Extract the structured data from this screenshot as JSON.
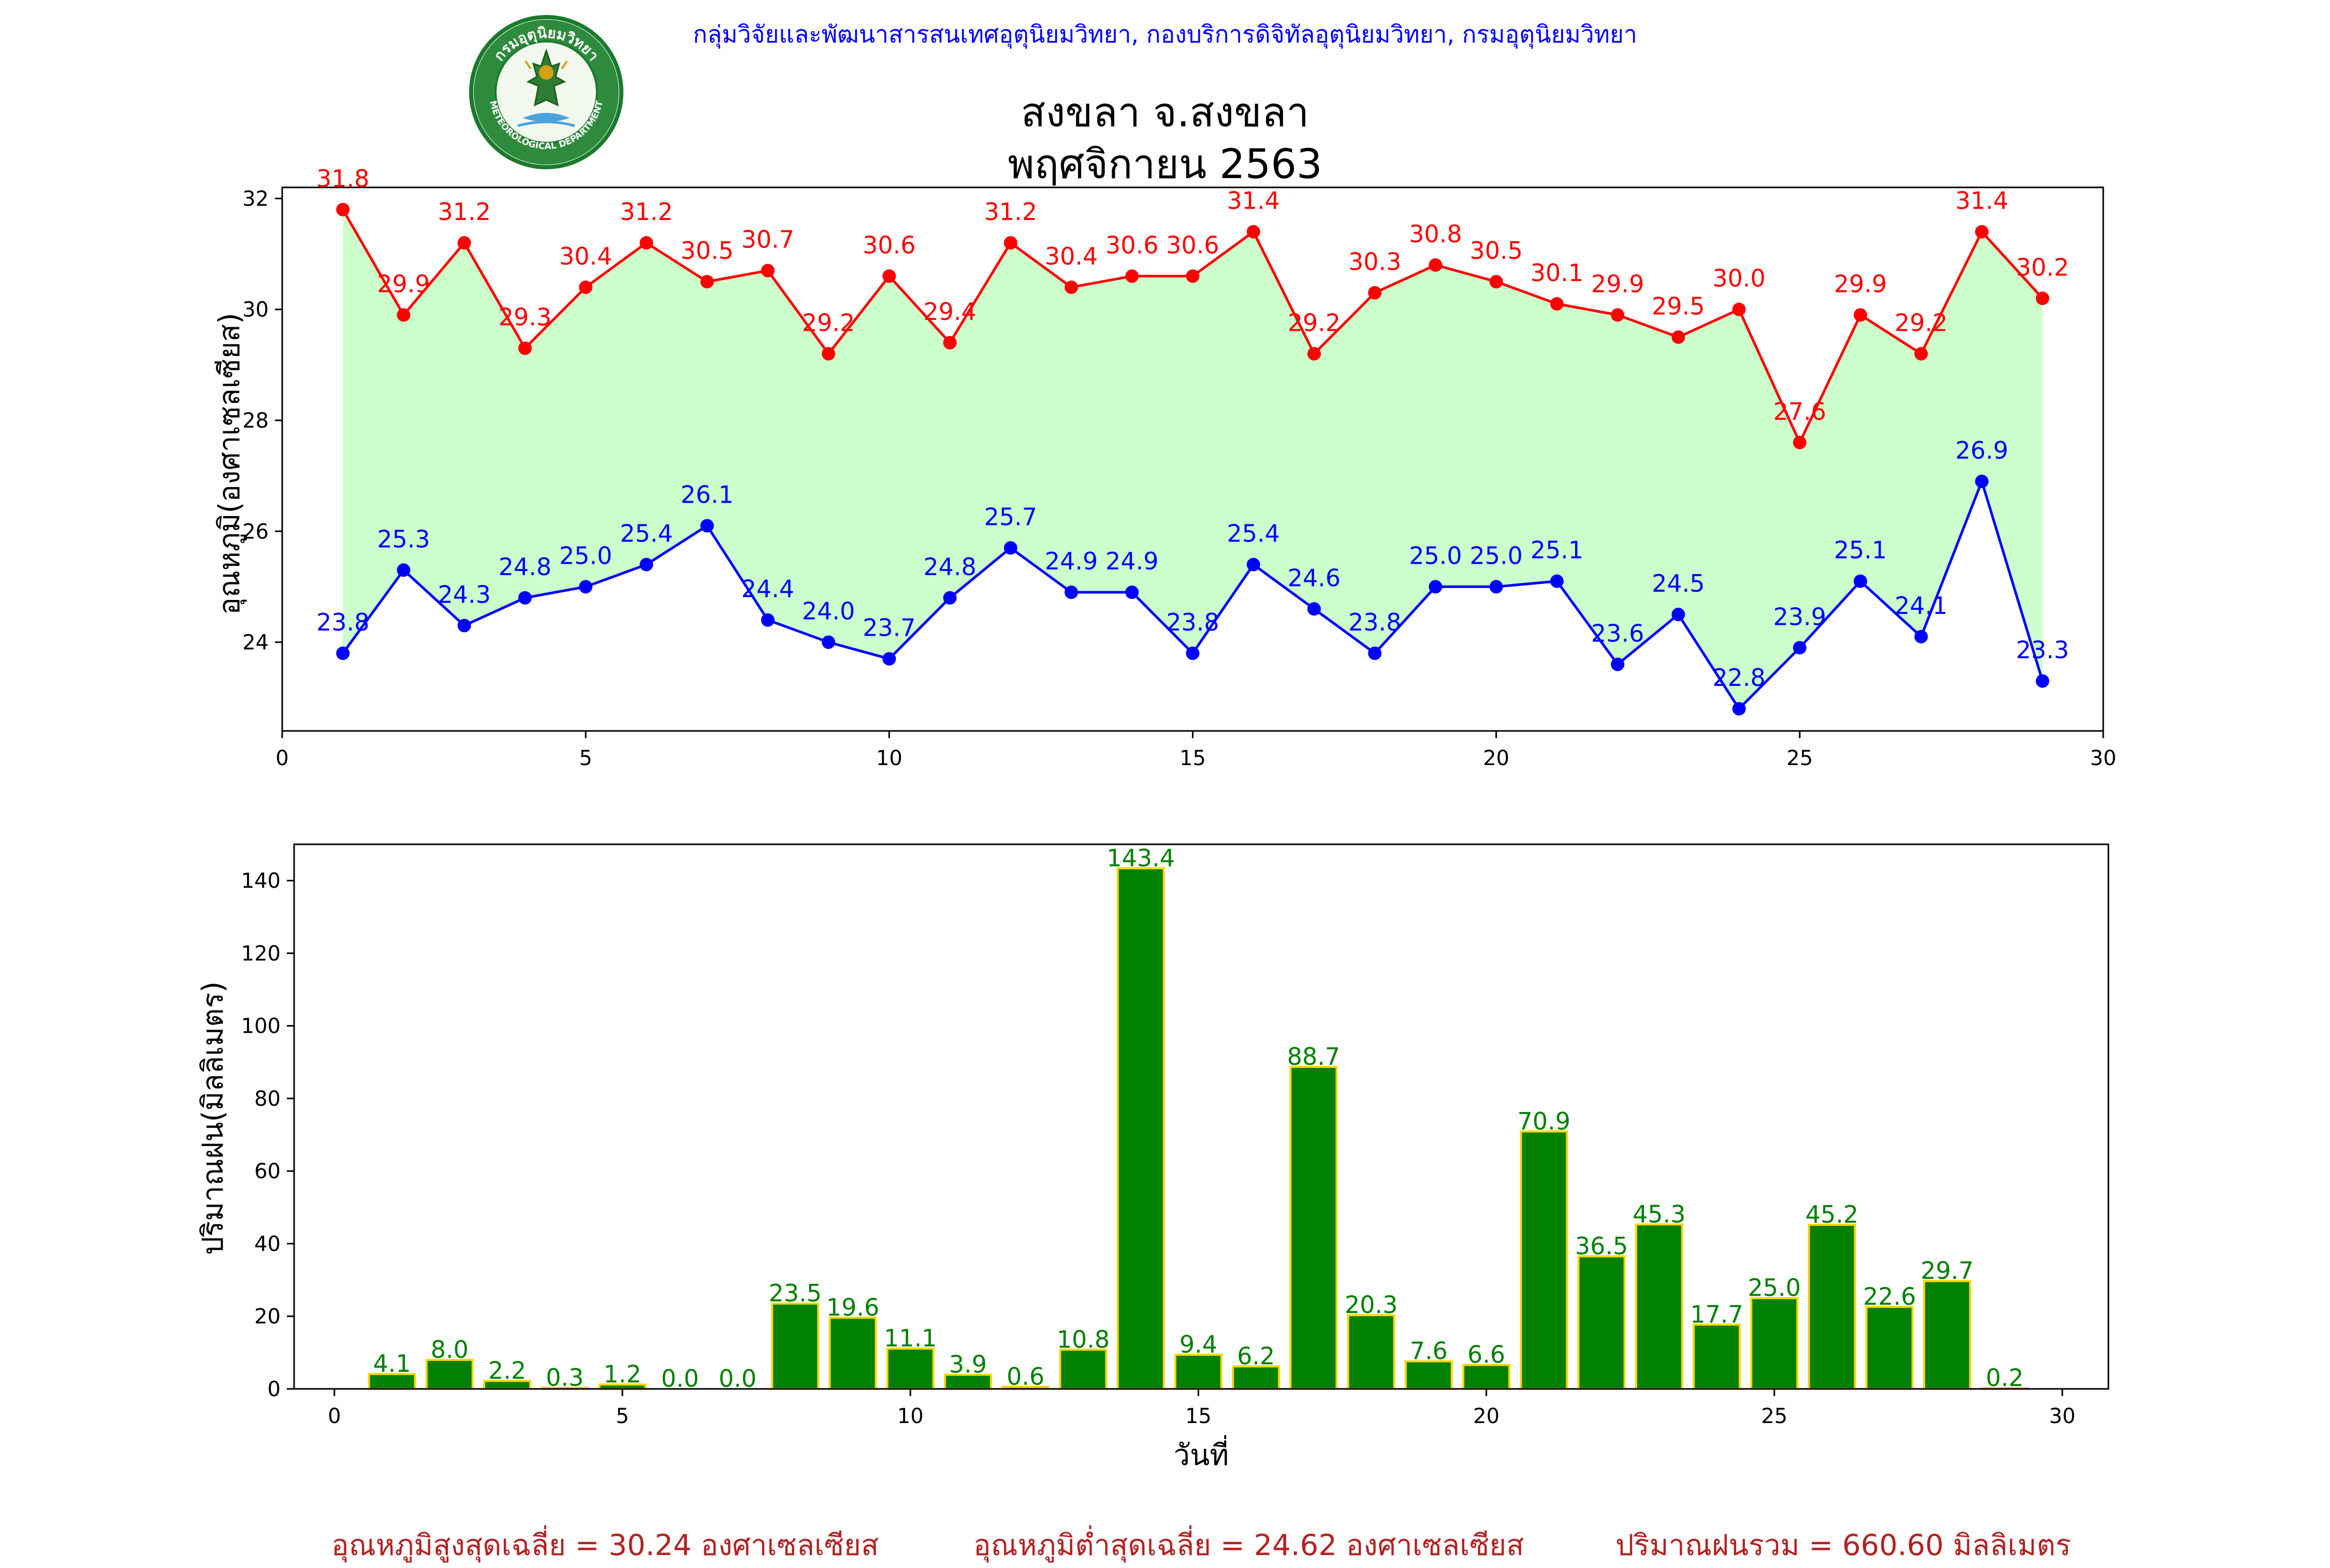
{
  "header": {
    "agency": "กลุ่มวิจัยและพัฒนาสารสนเทศอุตุนิยมวิทยา, กองบริการดิจิทัลอุตุนิยมวิทยา, กรมอุตุนิยมวิทยา",
    "title_line1": "สงขลา จ.สงขลา",
    "title_line2": "พฤศจิกายน 2563"
  },
  "logo": {
    "top_text": "กรมอุตุนิยมวิทยา",
    "bottom_text": "METEOROLOGICAL DEPARTMENT",
    "icon": "thai-deity-emblem",
    "ring_color": "#1a7a2c"
  },
  "chart_data": [
    {
      "type": "line",
      "ylabel": "อุณหภูมิ(องศาเซลเซียส)",
      "xlabel": "",
      "xlim": [
        0,
        30
      ],
      "ylim": [
        22.4,
        32.2
      ],
      "xticks": [
        0,
        5,
        10,
        15,
        20,
        25,
        30
      ],
      "yticks": [
        24,
        26,
        28,
        30,
        32
      ],
      "fill_between_color": "#ccffcc",
      "x": [
        1,
        2,
        3,
        4,
        5,
        6,
        7,
        8,
        9,
        10,
        11,
        12,
        13,
        14,
        15,
        16,
        17,
        18,
        19,
        20,
        21,
        22,
        23,
        24,
        25,
        26,
        27,
        28,
        29
      ],
      "series": [
        {
          "color": "#ff0000",
          "values": [
            31.8,
            29.9,
            31.2,
            29.3,
            30.4,
            31.2,
            30.5,
            30.7,
            29.2,
            30.6,
            29.4,
            31.2,
            30.4,
            30.6,
            30.6,
            31.4,
            29.2,
            30.3,
            30.8,
            30.5,
            30.1,
            29.9,
            29.5,
            30.0,
            27.6,
            29.9,
            29.2,
            31.4,
            30.2
          ]
        },
        {
          "color": "#0000ff",
          "values": [
            23.8,
            25.3,
            24.3,
            24.8,
            25.0,
            25.4,
            26.1,
            24.4,
            24.0,
            23.7,
            24.8,
            25.7,
            24.9,
            24.9,
            23.8,
            25.4,
            24.6,
            23.8,
            25.0,
            25.0,
            25.1,
            23.6,
            24.5,
            22.8,
            23.9,
            25.1,
            24.1,
            26.9,
            23.3
          ]
        }
      ]
    },
    {
      "type": "bar",
      "ylabel": "ปริมาณฝน(มิลลิเมตร)",
      "xlabel": "วันที่",
      "xlim": [
        -0.7,
        30.8
      ],
      "ylim": [
        0,
        150
      ],
      "xticks": [
        0,
        5,
        10,
        15,
        20,
        25,
        30
      ],
      "yticks": [
        0,
        20,
        40,
        60,
        80,
        100,
        120,
        140
      ],
      "bar_color": "#008000",
      "bar_edge_color": "#ffd700",
      "label_color": "#008000",
      "x": [
        1,
        2,
        3,
        4,
        5,
        6,
        7,
        8,
        9,
        10,
        11,
        12,
        13,
        14,
        15,
        16,
        17,
        18,
        19,
        20,
        21,
        22,
        23,
        24,
        25,
        26,
        27,
        28,
        29
      ],
      "values": [
        4.1,
        8.0,
        2.2,
        0.3,
        1.2,
        0.0,
        0.0,
        23.5,
        19.6,
        11.1,
        3.9,
        0.6,
        10.8,
        143.4,
        9.4,
        6.2,
        88.7,
        20.3,
        7.6,
        6.6,
        70.9,
        36.5,
        45.3,
        17.7,
        25.0,
        45.2,
        22.6,
        29.7,
        0.2
      ]
    }
  ],
  "footer": {
    "avg_max": "อุณหภูมิสูงสุดเฉลี่ย = 30.24 องศาเซลเซียส",
    "avg_min": "อุณหภูมิต่ำสุดเฉลี่ย = 24.62 องศาเซลเซียส",
    "total_rain": "ปริมาณฝนรวม = 660.60 มิลลิเมตร"
  }
}
